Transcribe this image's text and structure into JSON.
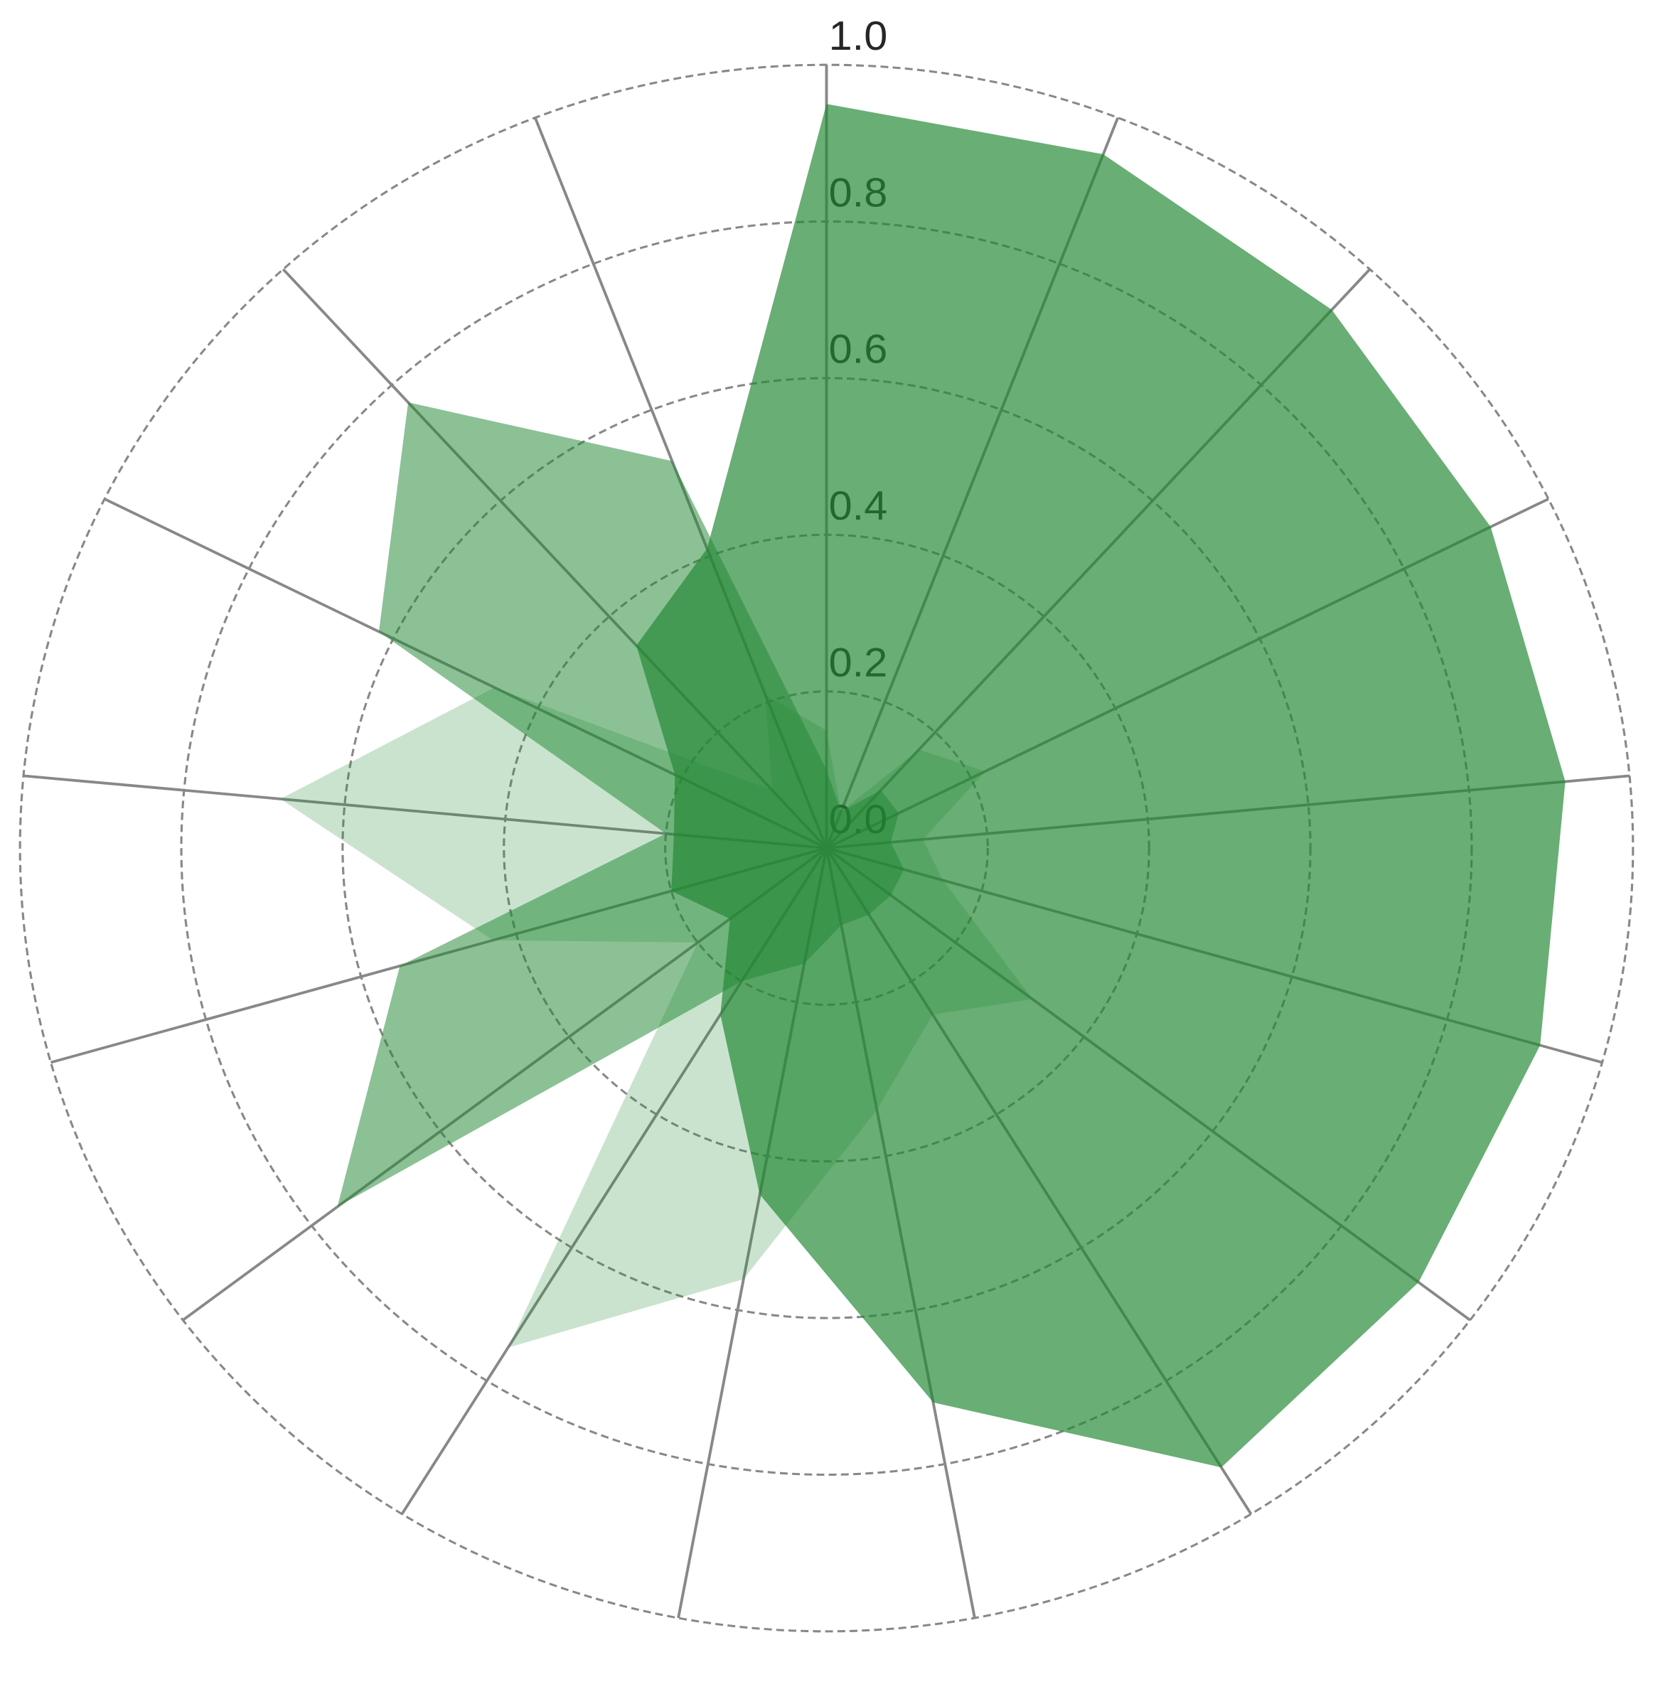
{
  "chart_data": {
    "type": "radar",
    "categories": [
      null,
      null,
      null,
      null,
      null,
      null,
      null,
      null,
      null,
      null,
      null,
      null,
      null,
      null,
      null,
      null,
      null
    ],
    "ylim": [
      0,
      1
    ],
    "yticks": [
      {
        "value": 0,
        "label": "0.0"
      },
      0.2,
      0.4,
      0.6,
      0.8,
      {
        "value": 1,
        "label": "1.0"
      }
    ],
    "grid": true,
    "series": [
      {
        "color": "#228833",
        "alpha": 0.68,
        "values": [
          0.95,
          0.95,
          0.93,
          0.92,
          0.92,
          0.92,
          0.92,
          0.93,
          0.72,
          0.45,
          0.25,
          0.15,
          0.2,
          0.19,
          0.21,
          0.35,
          0.41
        ]
      },
      {
        "color": "#228833",
        "alpha": 0.52,
        "values": [
          0.1,
          0.05,
          0.1,
          0.1,
          0.08,
          0.1,
          0.1,
          0.1,
          0.1,
          0.15,
          0.2,
          0.76,
          0.55,
          0.2,
          0.62,
          0.77,
          0.53
        ]
      },
      {
        "color": "#228833",
        "alpha": 0.24,
        "values": [
          0.15,
          0.05,
          0.17,
          0.22,
          0.12,
          0.15,
          0.32,
          0.25,
          0.34,
          0.56,
          0.75,
          0.2,
          0.43,
          0.68,
          0.46,
          0.1,
          0.21
        ]
      }
    ]
  }
}
